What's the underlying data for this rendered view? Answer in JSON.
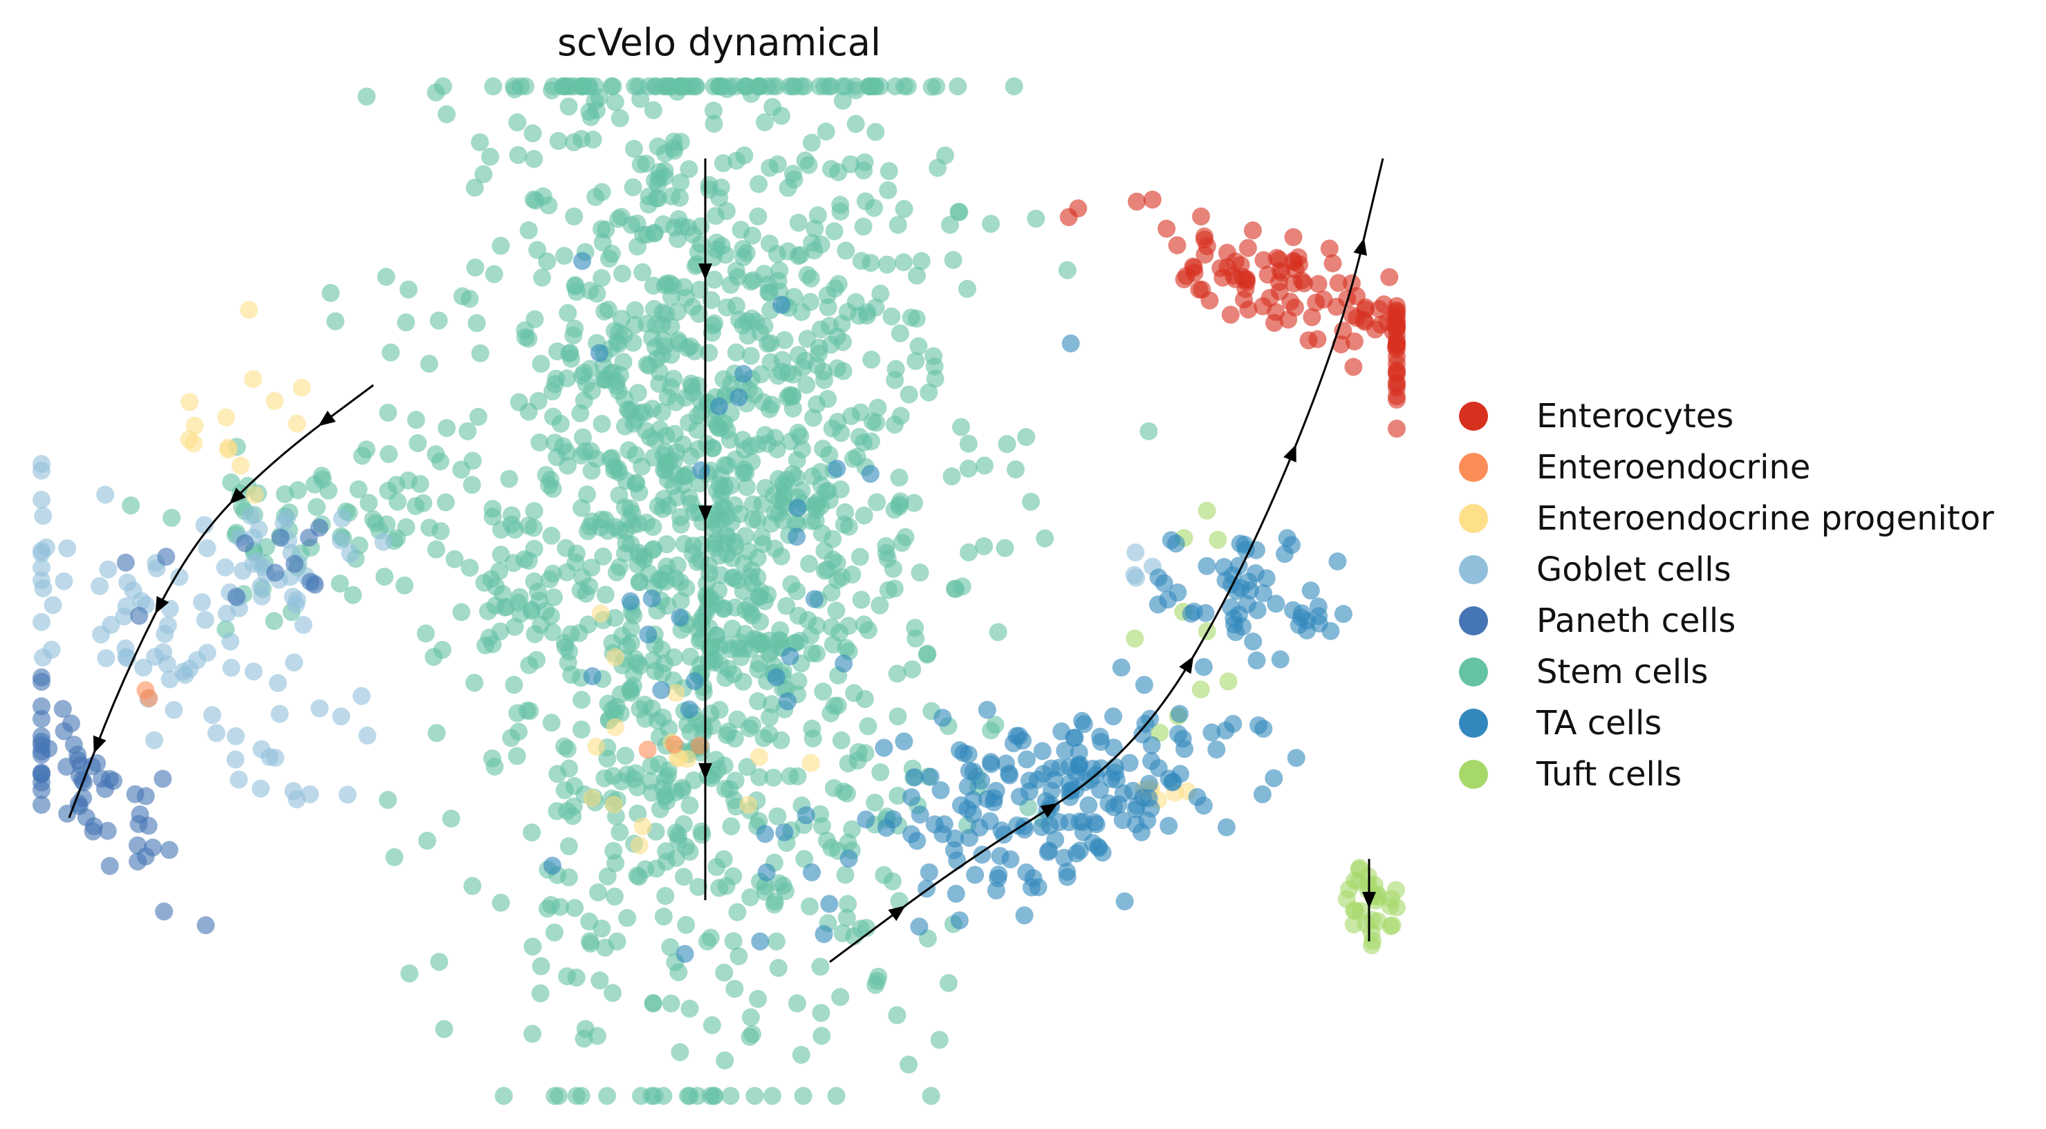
{
  "chart_data": {
    "type": "scatter",
    "subtype": "embedding scatter with RNA-velocity streamlines",
    "title": "scVelo dynamical",
    "xlabel": "",
    "ylabel": "",
    "axes_visible": false,
    "grid": false,
    "legend_position": "right",
    "xlim": [
      0,
      100
    ],
    "ylim": [
      0,
      100
    ],
    "series": [
      {
        "name": "Enterocytes",
        "color": "#d7301f",
        "clusters": [
          {
            "cx": 94,
            "cy": 78,
            "sx": 2.2,
            "sy": 9,
            "n": 120,
            "angle": 62
          }
        ]
      },
      {
        "name": "Enteroendocrine",
        "color": "#fc8d59",
        "clusters": [
          {
            "cx": 9,
            "cy": 40,
            "sx": 0.5,
            "sy": 0.5,
            "n": 2,
            "angle": 0
          },
          {
            "cx": 46,
            "cy": 35,
            "sx": 1.0,
            "sy": 1.0,
            "n": 3,
            "angle": 0
          }
        ]
      },
      {
        "name": "Enteroendocrine progenitor",
        "color": "#fee08b",
        "clusters": [
          {
            "cx": 15,
            "cy": 67,
            "sx": 2.5,
            "sy": 4,
            "n": 14,
            "angle": 0
          },
          {
            "cx": 48,
            "cy": 38,
            "sx": 4,
            "sy": 8,
            "n": 16,
            "angle": 0
          },
          {
            "cx": 82,
            "cy": 30,
            "sx": 1.5,
            "sy": 1.0,
            "n": 6,
            "angle": 0
          }
        ]
      },
      {
        "name": "Goblet cells",
        "color": "#91bfdb",
        "clusters": [
          {
            "cx": 10,
            "cy": 45,
            "sx": 4,
            "sy": 9,
            "n": 75,
            "angle": 40
          },
          {
            "cx": 18,
            "cy": 53,
            "sx": 3.5,
            "sy": 3,
            "n": 35,
            "angle": 20
          },
          {
            "cx": 80,
            "cy": 52,
            "sx": 1,
            "sy": 1,
            "n": 4,
            "angle": 0
          }
        ]
      },
      {
        "name": "Paneth cells",
        "color": "#4575b4",
        "clusters": [
          {
            "cx": 5,
            "cy": 30,
            "sx": 2,
            "sy": 5,
            "n": 55,
            "angle": 35
          },
          {
            "cx": 17,
            "cy": 52,
            "sx": 5,
            "sy": 2,
            "n": 12,
            "angle": 15
          }
        ]
      },
      {
        "name": "Stem cells",
        "color": "#66c2a5",
        "clusters": [
          {
            "cx": 49,
            "cy": 57,
            "sx": 9,
            "sy": 25,
            "n": 1400,
            "angle": 0
          },
          {
            "cx": 22,
            "cy": 56,
            "sx": 6,
            "sy": 4,
            "n": 70,
            "angle": 15
          }
        ]
      },
      {
        "name": "TA cells",
        "color": "#3288bd",
        "clusters": [
          {
            "cx": 74,
            "cy": 30,
            "sx": 8,
            "sy": 4,
            "n": 190,
            "angle": 25
          },
          {
            "cx": 87,
            "cy": 50,
            "sx": 2.5,
            "sy": 4,
            "n": 55,
            "angle": 55
          },
          {
            "cx": 49,
            "cy": 50,
            "sx": 8,
            "sy": 20,
            "n": 30,
            "angle": 0
          }
        ]
      },
      {
        "name": "Tuft cells",
        "color": "#a6d96a",
        "clusters": [
          {
            "cx": 97,
            "cy": 20,
            "sx": 1.2,
            "sy": 2.2,
            "n": 30,
            "angle": 0
          },
          {
            "cx": 85,
            "cy": 45,
            "sx": 2.5,
            "sy": 6,
            "n": 10,
            "angle": 0
          }
        ]
      }
    ],
    "streamlines": [
      {
        "name": "left-branch",
        "direction": "toward Paneth cells (lower-left)",
        "path": [
          [
            25,
            70
          ],
          [
            18,
            63
          ],
          [
            12,
            55
          ],
          [
            7,
            42
          ],
          [
            3,
            28
          ]
        ]
      },
      {
        "name": "center-mass",
        "direction": "downward through Stem cells",
        "path": [
          [
            49,
            92
          ],
          [
            49,
            70
          ],
          [
            49,
            45
          ],
          [
            49,
            20
          ]
        ]
      },
      {
        "name": "lower-right-branch",
        "direction": "toward Enterocytes (upper-right)",
        "path": [
          [
            58,
            14
          ],
          [
            68,
            24
          ],
          [
            80,
            34
          ],
          [
            88,
            52
          ],
          [
            95,
            75
          ],
          [
            98,
            92
          ]
        ]
      },
      {
        "name": "tuft-branch",
        "direction": "downward",
        "path": [
          [
            97,
            24
          ],
          [
            97,
            16
          ]
        ]
      }
    ]
  }
}
